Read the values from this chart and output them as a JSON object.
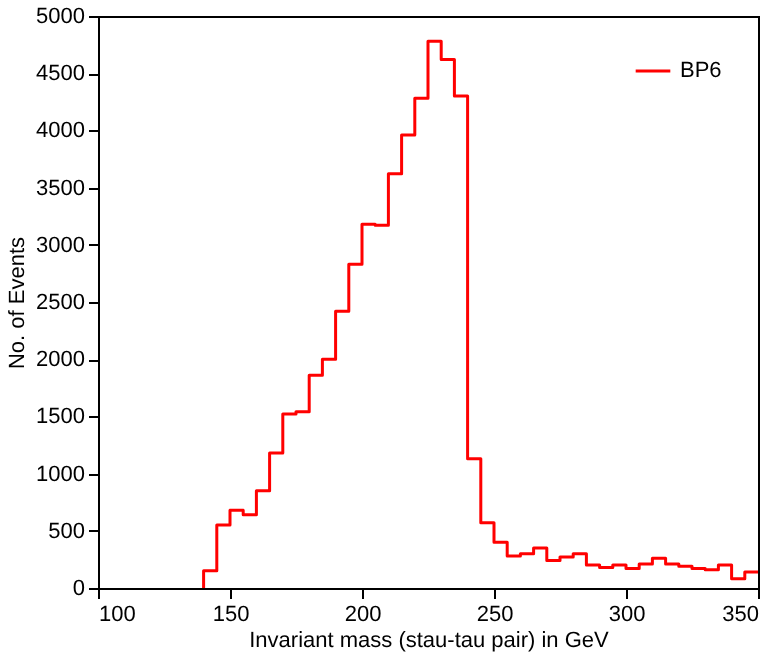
{
  "chart_data": {
    "type": "histogram",
    "xlabel": "Invariant mass (stau-tau pair) in GeV",
    "ylabel": "No. of Events",
    "bins": [
      140,
      145,
      150,
      155,
      160,
      165,
      170,
      175,
      180,
      185,
      190,
      195,
      200,
      205,
      210,
      215,
      220,
      225,
      230,
      235,
      240,
      245,
      250,
      255,
      260,
      265,
      270,
      275,
      280,
      285,
      290,
      295,
      300,
      305,
      310,
      315,
      320,
      325,
      330,
      335,
      340,
      345,
      350
    ],
    "series": [
      {
        "name": "BP6",
        "color": "#ff0000",
        "values": [
          150,
          550,
          680,
          640,
          850,
          1180,
          1520,
          1540,
          1860,
          2000,
          2420,
          2830,
          3180,
          3170,
          3620,
          3960,
          4280,
          4780,
          4620,
          4300,
          1130,
          570,
          400,
          280,
          300,
          350,
          240,
          270,
          300,
          200,
          180,
          200,
          170,
          210,
          260,
          210,
          190,
          170,
          160,
          200,
          80,
          140
        ]
      }
    ],
    "xlim": [
      100,
      350
    ],
    "xticks": [
      100,
      150,
      200,
      250,
      300,
      350
    ],
    "ylim": [
      0,
      5000
    ],
    "yticks": [
      0,
      500,
      1000,
      1500,
      2000,
      2500,
      3000,
      3500,
      4000,
      4500,
      5000
    ],
    "grid": false,
    "legend": "top right"
  }
}
